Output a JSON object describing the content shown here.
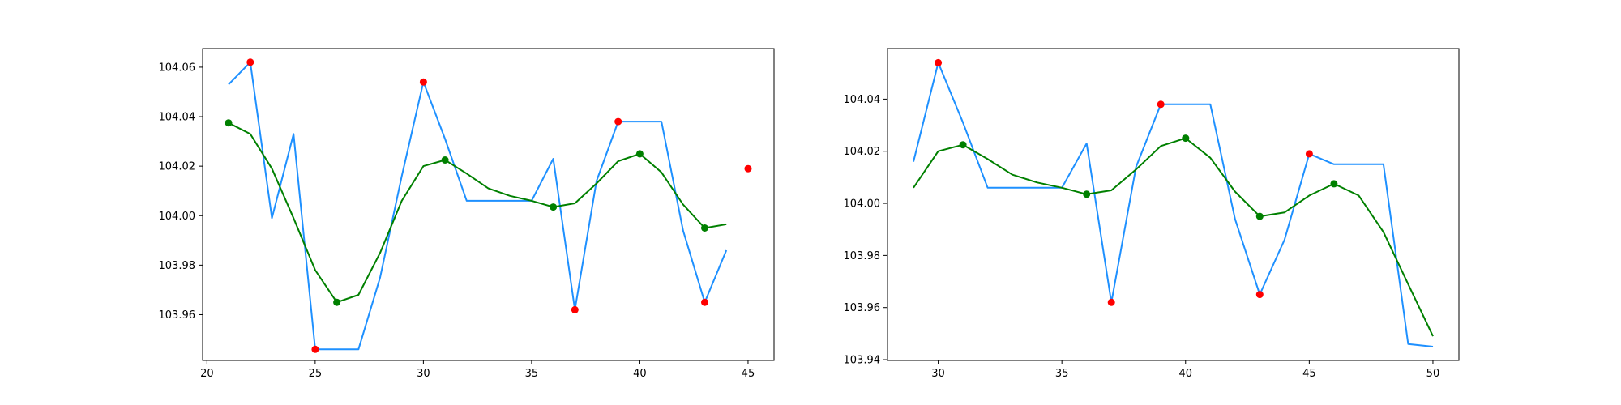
{
  "chart_data": [
    {
      "type": "line",
      "title": "",
      "xlabel": "",
      "ylabel": "",
      "xlim": [
        19.8,
        46.2
      ],
      "ylim": [
        103.9415,
        104.0675
      ],
      "xticks": [
        20,
        25,
        30,
        35,
        40,
        45
      ],
      "yticks": [
        103.96,
        103.98,
        104.0,
        104.02,
        104.04,
        104.06
      ],
      "xtick_labels": [
        "20",
        "25",
        "30",
        "35",
        "40",
        "45"
      ],
      "ytick_labels": [
        "103.96",
        "103.98",
        "104.00",
        "104.02",
        "104.04",
        "104.06"
      ],
      "grid": false,
      "series": [
        {
          "color": "#1e90ff",
          "kind": "line",
          "x": [
            21,
            22,
            23,
            24,
            25,
            26,
            27,
            28,
            29,
            30,
            31,
            32,
            33,
            34,
            35,
            36,
            37,
            38,
            39,
            40,
            41,
            42,
            43,
            44
          ],
          "y": [
            104.053,
            104.062,
            103.999,
            104.033,
            103.946,
            103.946,
            103.946,
            103.975,
            104.016,
            104.054,
            104.031,
            104.006,
            104.006,
            104.006,
            104.006,
            104.023,
            103.962,
            104.014,
            104.038,
            104.038,
            104.038,
            103.994,
            103.965,
            103.986
          ]
        },
        {
          "color": "#008000",
          "kind": "line",
          "x": [
            21,
            22,
            23,
            24,
            25,
            26,
            27,
            28,
            29,
            30,
            31,
            32,
            33,
            34,
            35,
            36,
            37,
            38,
            39,
            40,
            41,
            42,
            43,
            44
          ],
          "y": [
            104.0375,
            104.033,
            104.019,
            103.999,
            103.978,
            103.965,
            103.968,
            103.985,
            104.006,
            104.02,
            104.0225,
            104.017,
            104.011,
            104.008,
            104.006,
            104.0035,
            104.005,
            104.013,
            104.022,
            104.025,
            104.0175,
            104.0045,
            103.995,
            103.9965
          ]
        },
        {
          "color": "#008000",
          "kind": "scatter",
          "x": [
            21,
            26,
            31,
            36,
            40,
            43
          ],
          "y": [
            104.0375,
            103.965,
            104.0225,
            104.0035,
            104.025,
            103.995
          ]
        },
        {
          "color": "#ff0000",
          "kind": "scatter",
          "x": [
            22,
            25,
            30,
            37,
            39,
            43,
            45
          ],
          "y": [
            104.062,
            103.946,
            104.054,
            103.962,
            104.038,
            103.965,
            104.019
          ]
        }
      ]
    },
    {
      "type": "line",
      "title": "",
      "xlabel": "",
      "ylabel": "",
      "xlim": [
        27.95,
        51.05
      ],
      "ylim": [
        103.9397,
        104.0594
      ],
      "xticks": [
        30,
        35,
        40,
        45,
        50
      ],
      "yticks": [
        103.94,
        103.96,
        103.98,
        104.0,
        104.02,
        104.04
      ],
      "xtick_labels": [
        "30",
        "35",
        "40",
        "45",
        "50"
      ],
      "ytick_labels": [
        "103.94",
        "103.96",
        "103.98",
        "104.00",
        "104.02",
        "104.04"
      ],
      "grid": false,
      "series": [
        {
          "color": "#1e90ff",
          "kind": "line",
          "x": [
            29,
            30,
            31,
            32,
            33,
            34,
            35,
            36,
            37,
            38,
            39,
            40,
            41,
            42,
            43,
            44,
            45,
            46,
            47,
            48,
            49,
            50
          ],
          "y": [
            104.016,
            104.054,
            104.031,
            104.006,
            104.006,
            104.006,
            104.006,
            104.023,
            103.962,
            104.014,
            104.038,
            104.038,
            104.038,
            103.994,
            103.965,
            103.986,
            104.019,
            104.015,
            104.015,
            104.015,
            103.946,
            103.945
          ]
        },
        {
          "color": "#008000",
          "kind": "line",
          "x": [
            29,
            30,
            31,
            32,
            33,
            34,
            35,
            36,
            37,
            38,
            39,
            40,
            41,
            42,
            43,
            44,
            45,
            46,
            47,
            48,
            49,
            50
          ],
          "y": [
            104.006,
            104.02,
            104.0225,
            104.017,
            104.011,
            104.008,
            104.006,
            104.0035,
            104.005,
            104.013,
            104.022,
            104.025,
            104.0175,
            104.0045,
            103.995,
            103.9965,
            104.003,
            104.0075,
            104.003,
            103.989,
            103.969,
            103.949
          ]
        },
        {
          "color": "#008000",
          "kind": "scatter",
          "x": [
            31,
            36,
            40,
            43,
            46
          ],
          "y": [
            104.0225,
            104.0035,
            104.025,
            103.995,
            104.0075
          ]
        },
        {
          "color": "#ff0000",
          "kind": "scatter",
          "x": [
            30,
            37,
            39,
            43,
            45
          ],
          "y": [
            104.054,
            103.962,
            104.038,
            103.965,
            104.019
          ]
        }
      ]
    }
  ]
}
